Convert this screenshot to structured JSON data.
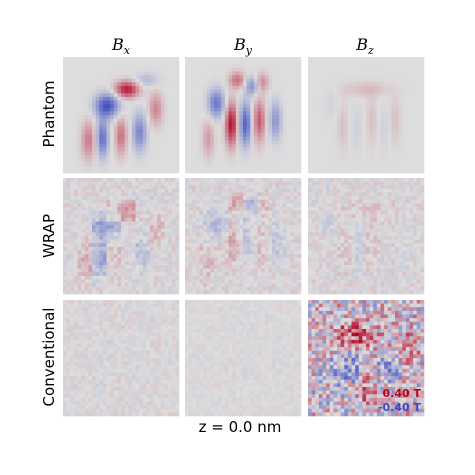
{
  "chart_data": {
    "type": "heatmap",
    "layout": "3x3 grid of panels",
    "columns": [
      {
        "key": "bx",
        "base": "B",
        "sub": "x"
      },
      {
        "key": "by",
        "base": "B",
        "sub": "y"
      },
      {
        "key": "bz",
        "base": "B",
        "sub": "z"
      }
    ],
    "rows": [
      "Phantom",
      "WRAP",
      "Conventional"
    ],
    "footer": "z = 0.0 nm",
    "colorscale": {
      "name": "coolwarm",
      "max_label": "0.40 T",
      "min_label": "-0.40 T",
      "max_value": 0.4,
      "min_value": -0.4,
      "high_color": "#b40426",
      "mid_color": "#dddddd",
      "low_color": "#3b4cc0",
      "label_position": "bottom-right of Conventional / Bz panel"
    },
    "panel_amplitude": {
      "Phantom": {
        "bx": 1.0,
        "by": 1.0,
        "bz": 0.45
      },
      "WRAP": {
        "bx": 0.55,
        "by": 0.6,
        "bz": 0.45
      },
      "Conventional": {
        "bx": 0.12,
        "by": 0.08,
        "bz": 1.0
      }
    },
    "grid_resolution": 32,
    "axes": "off"
  }
}
